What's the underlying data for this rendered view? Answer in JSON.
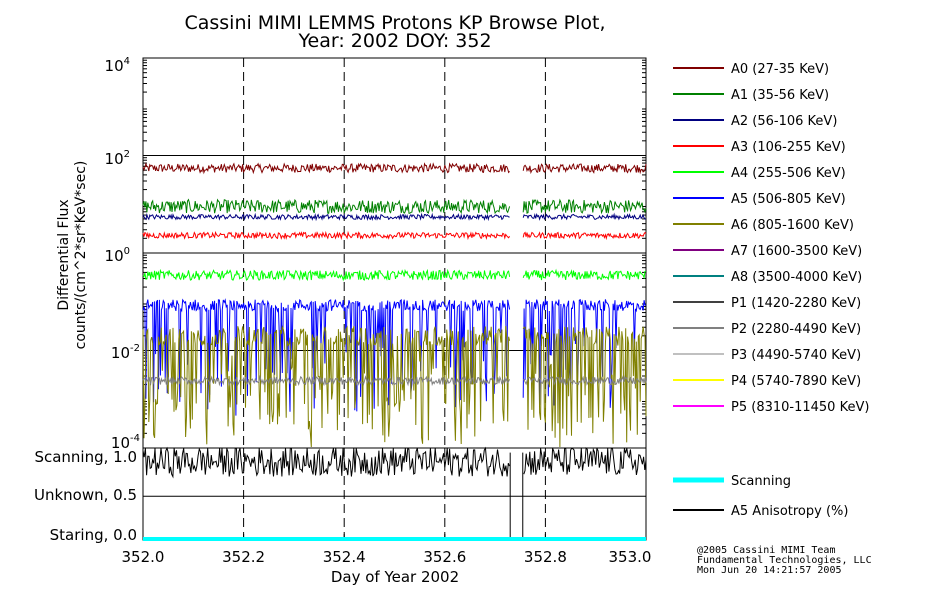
{
  "chart_data": {
    "type": "line",
    "title": "Cassini MIMI LEMMS Protons KP Browse Plot,",
    "subtitle": "Year: 2002 DOY: 352",
    "xlabel": "Day of Year 2002",
    "ylabel": [
      "Differential Flux",
      "counts/(cm^2*sr*KeV*sec)"
    ],
    "xlim": [
      352.0,
      353.0
    ],
    "x_ticks": [
      "352.0",
      "352.2",
      "352.4",
      "352.6",
      "352.8",
      "353.0"
    ],
    "y_scale": "log",
    "ylim": [
      0.0001,
      10000
    ],
    "y_ticks": [
      {
        "base": "10",
        "exp": "4",
        "value": 10000
      },
      {
        "base": "10",
        "exp": "2",
        "value": 100
      },
      {
        "base": "10",
        "exp": "0",
        "value": 1
      },
      {
        "base": "10",
        "exp": "-2",
        "value": 0.01
      },
      {
        "base": "10",
        "exp": "-4",
        "value": 0.0001
      }
    ],
    "data_gap": [
      352.73,
      352.755
    ],
    "series": [
      {
        "name": "A0 (27-35 KeV)",
        "color": "#800000",
        "level": 55,
        "noise": 0.09,
        "dropout": 0
      },
      {
        "name": "A1 (35-56 KeV)",
        "color": "#008000",
        "level": 9,
        "noise": 0.14,
        "dropout": 0
      },
      {
        "name": "A2 (56-106 KeV)",
        "color": "#000080",
        "level": 5.5,
        "noise": 0.05,
        "dropout": 0
      },
      {
        "name": "A3 (106-255 KeV)",
        "color": "#ff0000",
        "level": 2.3,
        "noise": 0.06,
        "dropout": 0
      },
      {
        "name": "A4 (255-506 KeV)",
        "color": "#00ff00",
        "level": 0.35,
        "noise": 0.1,
        "dropout": 0
      },
      {
        "name": "A5 (506-805 KeV)",
        "color": "#0000ff",
        "level": 0.085,
        "noise": 0.12,
        "dropout": 0.25
      },
      {
        "name": "A6 (805-1600 KeV)",
        "color": "#808000",
        "level": 0.02,
        "noise": 0.2,
        "dropout": 0.35
      },
      {
        "name": "A7 (1600-3500 KeV)",
        "color": "#800080",
        "level": null,
        "noise": 0,
        "dropout": 0
      },
      {
        "name": "A8 (3500-4000 KeV)",
        "color": "#008080",
        "level": null,
        "noise": 0,
        "dropout": 0
      },
      {
        "name": "P1 (1420-2280 KeV)",
        "color": "#404040",
        "level": null,
        "noise": 0,
        "dropout": 0
      },
      {
        "name": "P2 (2280-4490 KeV)",
        "color": "#808080",
        "level": 0.0024,
        "noise": 0.08,
        "dropout": 0
      },
      {
        "name": "P3 (4490-5740 KeV)",
        "color": "#c0c0c0",
        "level": null,
        "noise": 0,
        "dropout": 0
      },
      {
        "name": "P4 (5740-7890 KeV)",
        "color": "#ffff00",
        "level": null,
        "noise": 0,
        "dropout": 0
      },
      {
        "name": "P5 (8310-11450 KeV)",
        "color": "#ff00ff",
        "level": null,
        "noise": 0,
        "dropout": 0
      }
    ],
    "lower_panel": {
      "y_labels": [
        {
          "text": "Scanning, 1.0",
          "value": 1.0
        },
        {
          "text": "Unknown, 0.5",
          "value": 0.5
        },
        {
          "text": "Staring, 0.0",
          "value": 0.0
        }
      ],
      "legend": [
        {
          "name": "Scanning",
          "color": "#00ffff"
        },
        {
          "name": "A5 Anisotropy (%)",
          "color": "#000000"
        }
      ],
      "scanning_value": 0.0,
      "anisotropy_level": 0.9
    }
  },
  "credits": [
    "@2005 Cassini MIMI Team",
    "Fundamental Technologies, LLC",
    "Mon Jun 20 14:21:57 2005"
  ]
}
